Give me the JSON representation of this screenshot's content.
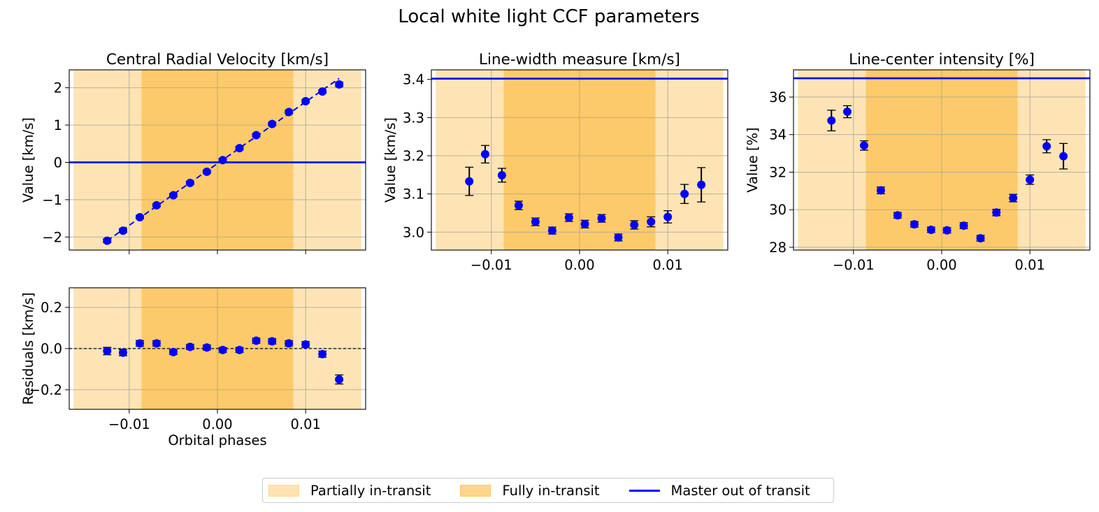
{
  "chart_data": {
    "suptitle": "Local white light CCF parameters",
    "type": "scatter",
    "phase_regions": {
      "partial_in_transit": [
        -0.0163,
        0.0163
      ],
      "full_in_transit": [
        -0.0086,
        0.0086
      ]
    },
    "colors": {
      "partial": "#fee4b4",
      "full": "#fdca6b",
      "points": "#0000ff",
      "master": "#0000ff",
      "grid": "#b0a898"
    },
    "panels": [
      {
        "id": "rv",
        "title": "Central Radial Velocity [km/s]",
        "ylabel": "Value [km/s]",
        "xlabel": "",
        "show_x_ticklabels": false,
        "xlim": [
          -0.0168,
          0.0168
        ],
        "ylim": [
          -2.35,
          2.48
        ],
        "xticks": [
          -0.01,
          0.0,
          0.01
        ],
        "xtick_labels": [
          "−0.01",
          "0.00",
          "0.01"
        ],
        "yticks": [
          -2,
          -1,
          0,
          1,
          2
        ],
        "ytick_labels": [
          "−2",
          "−1",
          "0",
          "1",
          "2"
        ],
        "master_value": 0,
        "fit_line": {
          "x": [
            -0.0125,
            0.0138
          ],
          "y": [
            -2.1,
            2.25
          ]
        },
        "x": [
          -0.0125,
          -0.0107,
          -0.0088,
          -0.0069,
          -0.005,
          -0.0031,
          -0.0012,
          0.0006,
          0.0025,
          0.0044,
          0.0062,
          0.0081,
          0.01,
          0.0119,
          0.0138
        ],
        "y": [
          -2.1,
          -1.83,
          -1.47,
          -1.15,
          -0.88,
          -0.55,
          -0.25,
          0.06,
          0.38,
          0.73,
          1.03,
          1.35,
          1.64,
          1.9,
          2.09
        ],
        "yerr": [
          0.05,
          0.05,
          0.04,
          0.04,
          0.04,
          0.04,
          0.04,
          0.04,
          0.04,
          0.04,
          0.04,
          0.04,
          0.04,
          0.04,
          0.06
        ]
      },
      {
        "id": "width",
        "title": "Line-width measure [km/s]",
        "ylabel": "Value [km/s]",
        "xlabel": "",
        "show_x_ticklabels": true,
        "xlim": [
          -0.0168,
          0.0168
        ],
        "ylim": [
          2.953,
          3.425
        ],
        "xticks": [
          -0.01,
          0.0,
          0.01
        ],
        "xtick_labels": [
          "−0.01",
          "0.00",
          "0.01"
        ],
        "yticks": [
          3.0,
          3.1,
          3.2,
          3.3,
          3.4
        ],
        "ytick_labels": [
          "3.0",
          "3.1",
          "3.2",
          "3.3",
          "3.4"
        ],
        "master_value": 3.402,
        "x": [
          -0.0125,
          -0.0107,
          -0.0088,
          -0.0069,
          -0.005,
          -0.0031,
          -0.0012,
          0.0006,
          0.0025,
          0.0044,
          0.0062,
          0.0081,
          0.01,
          0.0119,
          0.0138
        ],
        "y": [
          3.133,
          3.204,
          3.149,
          3.07,
          3.027,
          3.004,
          3.038,
          3.021,
          3.036,
          2.986,
          3.019,
          3.027,
          3.04,
          3.1,
          3.124
        ],
        "yerr": [
          0.037,
          0.023,
          0.018,
          0.011,
          0.01,
          0.009,
          0.01,
          0.01,
          0.01,
          0.009,
          0.011,
          0.013,
          0.016,
          0.025,
          0.045
        ]
      },
      {
        "id": "contrast",
        "title": "Line-center intensity [%]",
        "ylabel": "Value [%]",
        "xlabel": "",
        "show_x_ticklabels": true,
        "xlim": [
          -0.0168,
          0.0168
        ],
        "ylim": [
          27.85,
          37.45
        ],
        "xticks": [
          -0.01,
          0.0,
          0.01
        ],
        "xtick_labels": [
          "−0.01",
          "0.00",
          "0.01"
        ],
        "yticks": [
          28,
          30,
          32,
          34,
          36
        ],
        "ytick_labels": [
          "28",
          "30",
          "32",
          "34",
          "36"
        ],
        "master_value": 37.0,
        "x": [
          -0.0125,
          -0.0107,
          -0.0088,
          -0.0069,
          -0.005,
          -0.0031,
          -0.0012,
          0.0006,
          0.0025,
          0.0044,
          0.0062,
          0.0081,
          0.01,
          0.0119,
          0.0138
        ],
        "y": [
          34.75,
          35.22,
          33.42,
          31.03,
          29.7,
          29.22,
          28.93,
          28.9,
          29.15,
          28.48,
          29.85,
          30.62,
          31.6,
          33.38,
          32.85
        ],
        "yerr": [
          0.55,
          0.32,
          0.25,
          0.18,
          0.15,
          0.15,
          0.14,
          0.14,
          0.16,
          0.15,
          0.17,
          0.2,
          0.25,
          0.35,
          0.68
        ]
      },
      {
        "id": "residuals",
        "title": "",
        "ylabel": "Residuals [km/s]",
        "xlabel": "Orbital phases",
        "show_x_ticklabels": true,
        "xlim": [
          -0.0168,
          0.0168
        ],
        "ylim": [
          -0.295,
          0.295
        ],
        "xticks": [
          -0.01,
          0.0,
          0.01
        ],
        "xtick_labels": [
          "−0.01",
          "0.00",
          "0.01"
        ],
        "yticks": [
          -0.2,
          0.0,
          0.2
        ],
        "ytick_labels": [
          "−0.2",
          "0.0",
          "0.2"
        ],
        "zero_line": 0,
        "x": [
          -0.0125,
          -0.0107,
          -0.0088,
          -0.0069,
          -0.005,
          -0.0031,
          -0.0012,
          0.0006,
          0.0025,
          0.0044,
          0.0062,
          0.0081,
          0.01,
          0.0119,
          0.0138
        ],
        "y": [
          -0.012,
          -0.02,
          0.025,
          0.025,
          -0.017,
          0.008,
          0.005,
          -0.007,
          -0.007,
          0.038,
          0.035,
          0.025,
          0.02,
          -0.027,
          -0.15
        ],
        "yerr": [
          0.018,
          0.015,
          0.014,
          0.013,
          0.012,
          0.012,
          0.012,
          0.012,
          0.012,
          0.012,
          0.013,
          0.013,
          0.014,
          0.015,
          0.022
        ]
      }
    ],
    "legend": {
      "items": [
        {
          "label": "Partially in-transit",
          "kind": "patch-partial"
        },
        {
          "label": "Fully in-transit",
          "kind": "patch-full"
        },
        {
          "label": "Master out of transit",
          "kind": "line"
        }
      ],
      "placement": "bottom-center"
    }
  }
}
